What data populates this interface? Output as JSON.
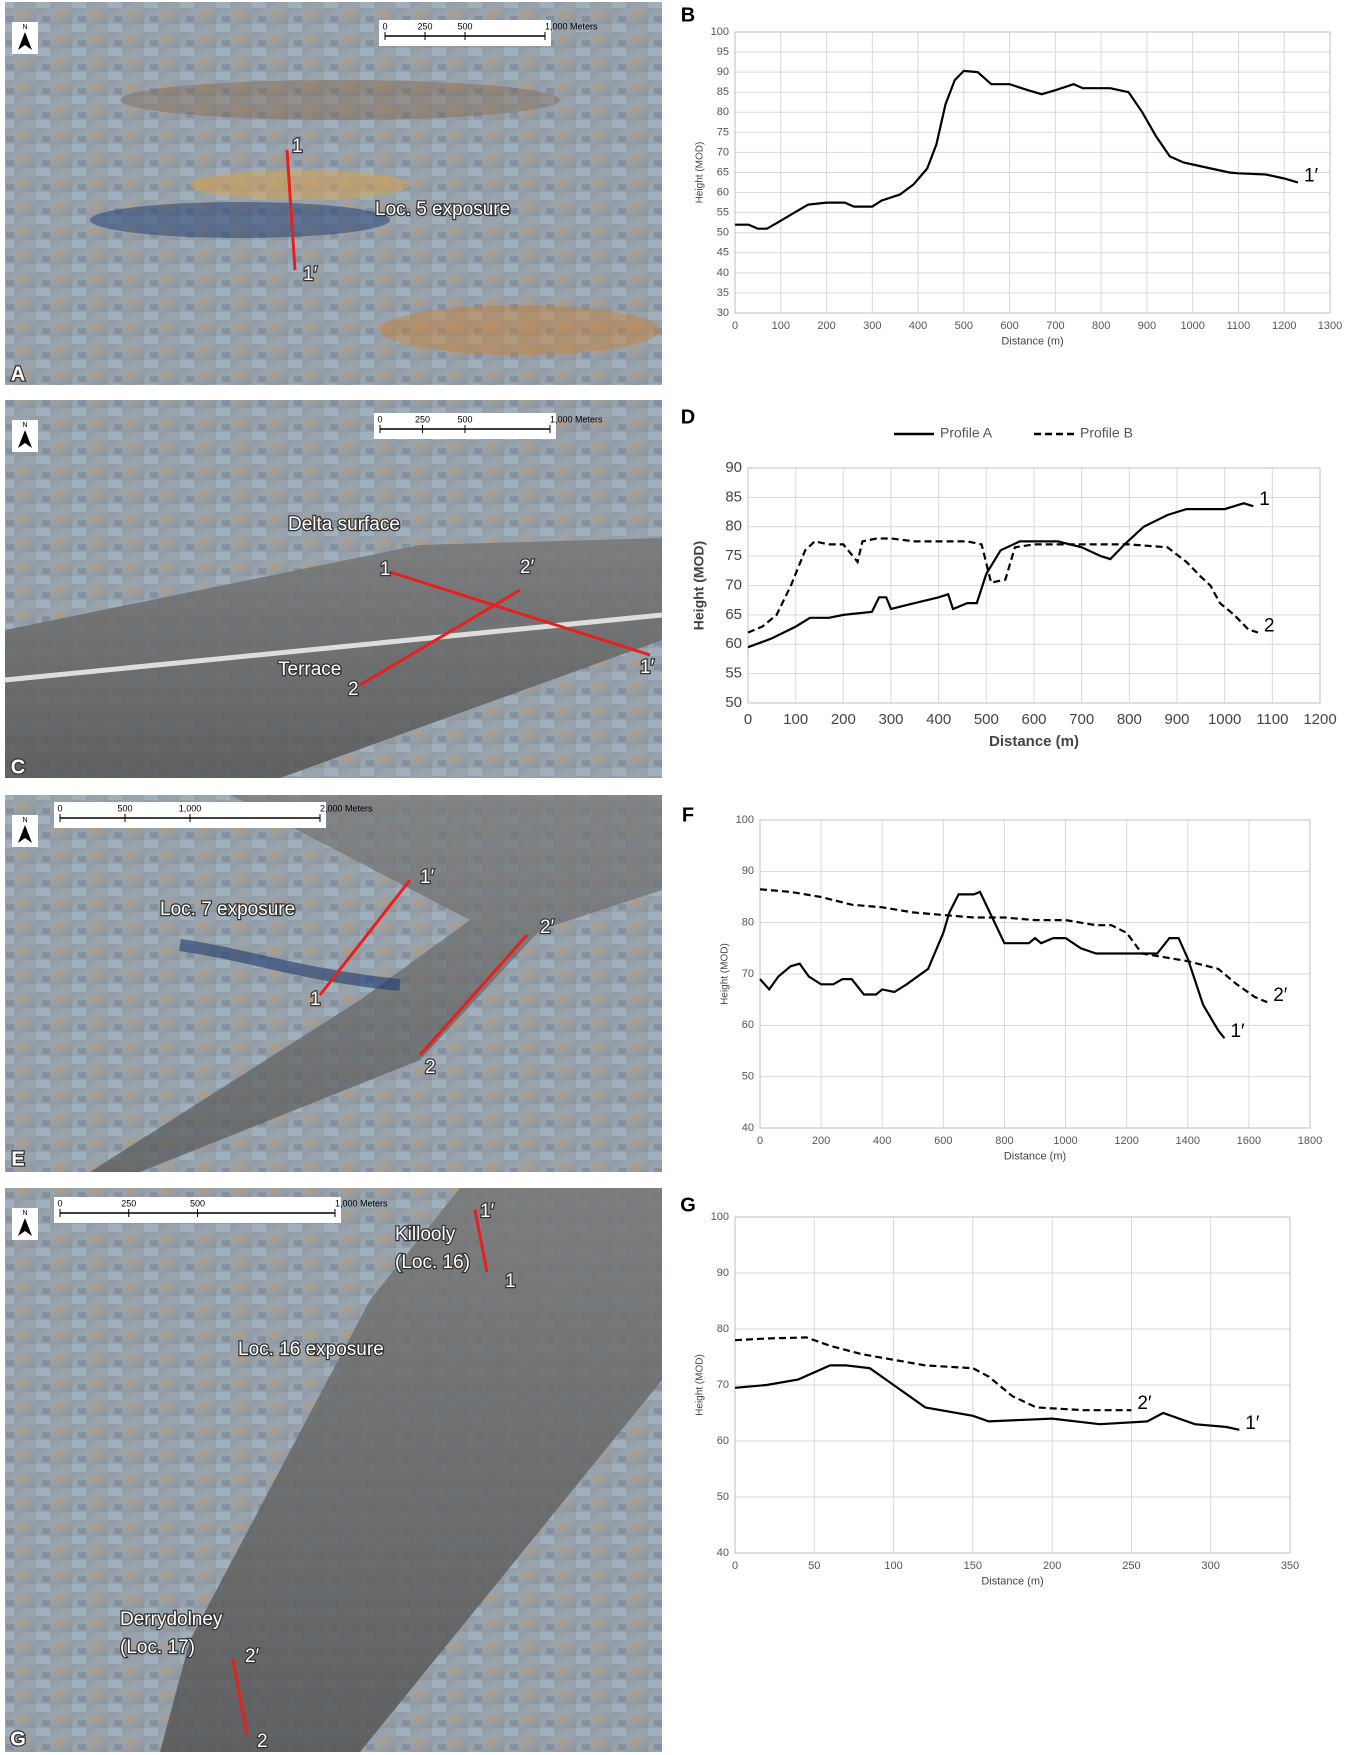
{
  "chart_data": [
    {
      "type": "line",
      "panel": "B",
      "xlabel": "Distance (m)",
      "ylabel": "Height (MOD)",
      "xlim": [
        0,
        1300
      ],
      "xticks": [
        0,
        100,
        200,
        300,
        400,
        500,
        600,
        700,
        800,
        900,
        1000,
        1100,
        1200,
        1300
      ],
      "ylim": [
        30,
        100
      ],
      "yticks": [
        30,
        35,
        40,
        45,
        50,
        55,
        60,
        65,
        70,
        75,
        80,
        85,
        90,
        95,
        100
      ],
      "grid": true,
      "series": [
        {
          "color": "#000000",
          "dash": false,
          "end_label": "1′",
          "x": [
            0,
            30,
            50,
            70,
            100,
            130,
            160,
            200,
            240,
            260,
            300,
            320,
            360,
            390,
            420,
            440,
            460,
            480,
            500,
            530,
            560,
            600,
            640,
            670,
            700,
            740,
            760,
            820,
            860,
            890,
            920,
            950,
            980,
            1000,
            1040,
            1080,
            1100,
            1160,
            1200,
            1230
          ],
          "values": [
            52,
            52,
            51,
            51,
            53,
            55,
            57,
            57.5,
            57.5,
            56.5,
            56.5,
            58,
            59.5,
            62,
            66,
            72,
            82,
            88,
            90.3,
            90,
            87,
            87,
            85.5,
            84.5,
            85.5,
            87,
            86,
            86,
            85,
            80,
            74,
            69,
            67.5,
            67,
            66,
            65,
            64.8,
            64.5,
            63.5,
            62.5
          ]
        }
      ]
    },
    {
      "type": "line",
      "panel": "D",
      "xlabel": "Distance (m)",
      "ylabel": "Height (MOD)",
      "xlim": [
        0,
        1200
      ],
      "xticks": [
        0,
        100,
        200,
        300,
        400,
        500,
        600,
        700,
        800,
        900,
        1000,
        1100,
        1200
      ],
      "ylim": [
        50,
        90
      ],
      "yticks": [
        50,
        55,
        60,
        65,
        70,
        75,
        80,
        85,
        90
      ],
      "grid": true,
      "legend": "top",
      "series": [
        {
          "name": "Profile A",
          "color": "#000000",
          "dash": false,
          "end_label": "1",
          "x": [
            0,
            50,
            100,
            130,
            170,
            200,
            260,
            275,
            290,
            300,
            350,
            400,
            420,
            430,
            460,
            480,
            500,
            530,
            570,
            650,
            700,
            740,
            760,
            790,
            830,
            880,
            920,
            960,
            1000,
            1040,
            1060
          ],
          "values": [
            59.5,
            61,
            63,
            64.5,
            64.5,
            65,
            65.5,
            68,
            68,
            66,
            67,
            68,
            68.5,
            66,
            67,
            67,
            72,
            76,
            77.5,
            77.5,
            76.5,
            75,
            74.5,
            77,
            80,
            82,
            83,
            83,
            83,
            84,
            83.5
          ]
        },
        {
          "name": "Profile B",
          "color": "#000000",
          "dash": true,
          "end_label": "2",
          "x": [
            0,
            30,
            60,
            90,
            120,
            140,
            170,
            200,
            220,
            230,
            240,
            270,
            300,
            350,
            400,
            460,
            490,
            510,
            540,
            560,
            600,
            700,
            800,
            880,
            920,
            950,
            970,
            990,
            1020,
            1050,
            1070
          ],
          "values": [
            62,
            63,
            65,
            70,
            76,
            77.5,
            77,
            77,
            75,
            74,
            77.5,
            78,
            78,
            77.5,
            77.5,
            77.5,
            77,
            70.5,
            71,
            76.5,
            77,
            77,
            77,
            76.5,
            74,
            71.5,
            70,
            67,
            65,
            62.5,
            62
          ]
        }
      ]
    },
    {
      "type": "line",
      "panel": "F",
      "xlabel": "Distance (m)",
      "ylabel": "Height (MOD)",
      "xlim": [
        0,
        1800
      ],
      "xticks": [
        0,
        200,
        400,
        600,
        800,
        1000,
        1200,
        1400,
        1600,
        1800
      ],
      "ylim": [
        40,
        100
      ],
      "yticks": [
        40,
        50,
        60,
        70,
        80,
        90,
        100
      ],
      "grid": true,
      "series": [
        {
          "color": "#000000",
          "dash": false,
          "end_label": "1′",
          "x": [
            0,
            30,
            60,
            100,
            130,
            160,
            200,
            240,
            270,
            300,
            340,
            380,
            400,
            440,
            480,
            550,
            600,
            620,
            650,
            700,
            720,
            760,
            800,
            880,
            900,
            920,
            960,
            1000,
            1050,
            1100,
            1200,
            1300,
            1340,
            1370,
            1400,
            1450,
            1500,
            1520
          ],
          "values": [
            69,
            67,
            69.5,
            71.5,
            72,
            69.5,
            68,
            68,
            69,
            69,
            66,
            66,
            67,
            66.5,
            68,
            71,
            78,
            82,
            85.5,
            85.5,
            86,
            81,
            76,
            76,
            77,
            76,
            77,
            77,
            75,
            74,
            74,
            74,
            77,
            77,
            73,
            64,
            59,
            57.5
          ]
        },
        {
          "color": "#000000",
          "dash": true,
          "end_label": "2′",
          "x": [
            0,
            100,
            200,
            300,
            400,
            500,
            600,
            700,
            800,
            900,
            1000,
            1100,
            1150,
            1200,
            1250,
            1300,
            1400,
            1500,
            1560,
            1620,
            1660
          ],
          "values": [
            86.5,
            86,
            85,
            83.5,
            83,
            82,
            81.5,
            81,
            81,
            80.5,
            80.5,
            79.5,
            79.5,
            78,
            74,
            73.5,
            72.5,
            71,
            68,
            65.5,
            64.5
          ]
        }
      ]
    },
    {
      "type": "line",
      "panel": "G",
      "xlabel": "Distance (m)",
      "ylabel": "Height (MOD)",
      "xlim": [
        0,
        350
      ],
      "xticks": [
        0,
        50,
        100,
        150,
        200,
        250,
        300,
        350
      ],
      "ylim": [
        40,
        100
      ],
      "yticks": [
        40,
        50,
        60,
        70,
        80,
        90,
        100
      ],
      "grid": true,
      "series": [
        {
          "color": "#000000",
          "dash": false,
          "end_label": "1′",
          "x": [
            0,
            20,
            40,
            60,
            70,
            85,
            100,
            120,
            150,
            160,
            200,
            230,
            260,
            270,
            290,
            310,
            318
          ],
          "values": [
            69.5,
            70,
            71,
            73.5,
            73.5,
            73,
            70,
            66,
            64.5,
            63.5,
            64,
            63,
            63.5,
            65,
            63,
            62.5,
            62
          ]
        },
        {
          "color": "#000000",
          "dash": true,
          "end_label": "2′",
          "x": [
            0,
            20,
            45,
            60,
            80,
            100,
            120,
            150,
            160,
            175,
            190,
            220,
            250
          ],
          "values": [
            78,
            78.3,
            78.5,
            77,
            75.5,
            74.5,
            73.5,
            73,
            71.5,
            68,
            66,
            65.5,
            65.5
          ]
        }
      ]
    }
  ],
  "maps": [
    {
      "panel": "A",
      "north": "N",
      "scale": [
        "0",
        "250",
        "500",
        "1,000 Meters"
      ],
      "labels": [
        "1",
        "1′",
        "Loc. 5 exposure"
      ]
    },
    {
      "panel": "C",
      "north": "N",
      "scale": [
        "0",
        "250",
        "500",
        "1,000 Meters"
      ],
      "labels": [
        "Delta surface",
        "1",
        "2′",
        "Terrace",
        "2",
        "1′"
      ]
    },
    {
      "panel": "E",
      "north": "N",
      "scale": [
        "0",
        "500",
        "1,000",
        "2,000 Meters"
      ],
      "labels": [
        "Loc. 7 exposure",
        "1′",
        "1",
        "2′",
        "2"
      ]
    },
    {
      "panel": "G",
      "north": "N",
      "scale": [
        "0",
        "250",
        "500",
        "1,000 Meters"
      ],
      "labels": [
        "Killooly",
        "(Loc. 16)",
        "1′",
        "1",
        "Loc. 16 exposure",
        "Derrydolney",
        "(Loc. 17)",
        "2′",
        "2"
      ]
    }
  ]
}
